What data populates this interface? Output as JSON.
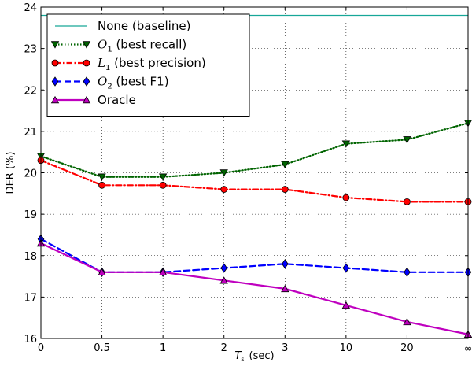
{
  "chart_data": {
    "type": "line",
    "x_categories": [
      "0",
      "0.5",
      "1",
      "2",
      "3",
      "10",
      "20",
      "∞"
    ],
    "xlabel_main": "T",
    "xlabel_sub": "s",
    "xlabel_unit": "(sec)",
    "ylabel": "DER (%)",
    "ylim": [
      16,
      24
    ],
    "yticks": [
      "16",
      "17",
      "18",
      "19",
      "20",
      "21",
      "22",
      "23",
      "24"
    ],
    "grid": true,
    "legend_position": "top-left",
    "series": [
      {
        "name": "None (baseline)",
        "name_base": "",
        "name_sub": "",
        "name_rest": "None (baseline)",
        "color": "#17a798",
        "dash": "none",
        "marker": "none",
        "values": [
          23.8,
          23.8,
          23.8,
          23.8,
          23.8,
          23.8,
          23.8,
          23.8
        ]
      },
      {
        "name": "O1 (best recall)",
        "name_base": "O",
        "name_sub": "1",
        "name_rest": " (best recall)",
        "color": "#006400",
        "dash": "dotted",
        "marker": "triangle-down",
        "values": [
          20.4,
          19.9,
          19.9,
          20.0,
          20.2,
          20.7,
          20.8,
          21.2
        ]
      },
      {
        "name": "L1 (best precision)",
        "name_base": "L",
        "name_sub": "1",
        "name_rest": " (best precision)",
        "color": "#ff0000",
        "dash": "dashdot",
        "marker": "circle",
        "values": [
          20.3,
          19.7,
          19.7,
          19.6,
          19.6,
          19.4,
          19.3,
          19.3
        ]
      },
      {
        "name": "O2 (best F1)",
        "name_base": "O",
        "name_sub": "2",
        "name_rest": " (best F1)",
        "color": "#0000ff",
        "dash": "dashed",
        "marker": "diamond",
        "values": [
          18.4,
          17.6,
          17.6,
          17.7,
          17.8,
          17.7,
          17.6,
          17.6
        ]
      },
      {
        "name": "Oracle",
        "name_base": "",
        "name_sub": "",
        "name_rest": "Oracle",
        "color": "#bf00bf",
        "dash": "none",
        "marker": "triangle-up",
        "values": [
          18.3,
          17.6,
          17.6,
          17.4,
          17.2,
          16.8,
          16.4,
          16.1
        ]
      }
    ]
  }
}
